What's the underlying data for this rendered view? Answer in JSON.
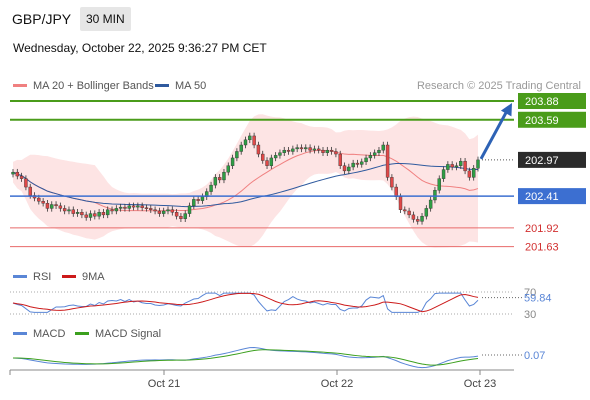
{
  "header": {
    "symbol": "GBP/JPY",
    "timeframe": "30 MIN",
    "datetime": "Wednesday, October 22, 2025 9:36:27 PM CET"
  },
  "colors": {
    "ma20": "#f08080",
    "ma50": "#2f5a9e",
    "bollinger_fill": "#fde4e4",
    "up_candle": "#2e9e44",
    "down_candle": "#e04848",
    "target_line": "#4a9c1a",
    "pivot_line": "#3c6fd1",
    "support_line": "#e86a6a",
    "arrow": "#2d62b5",
    "rsi": "#5a86d6",
    "rsi_ma": "#cc1a1a",
    "macd": "#5a86d6",
    "macd_signal": "#3ca01e",
    "current_price_bg": "#2b2b2b"
  },
  "chart_data": {
    "type": "candlestick",
    "legend": {
      "ma20_label": "MA 20 + Bollinger Bands",
      "ma50_label": "MA 50"
    },
    "watermark": "Research © 2025 Trading Central",
    "y_range": [
      201.5,
      204.05
    ],
    "x_ticks": [
      "Oct 21",
      "Oct 22",
      "Oct 23"
    ],
    "levels": [
      {
        "value": "203.88",
        "type": "target"
      },
      {
        "value": "203.59",
        "type": "target"
      },
      {
        "value": "202.97",
        "type": "current"
      },
      {
        "value": "202.41",
        "type": "pivot"
      },
      {
        "value": "201.92",
        "type": "support"
      },
      {
        "value": "201.63",
        "type": "support"
      }
    ],
    "candles_close": [
      202.78,
      202.72,
      202.68,
      202.55,
      202.42,
      202.38,
      202.33,
      202.3,
      202.22,
      202.28,
      202.26,
      202.22,
      202.18,
      202.2,
      202.14,
      202.16,
      202.12,
      202.08,
      202.14,
      202.1,
      202.16,
      202.12,
      202.2,
      202.18,
      202.22,
      202.24,
      202.22,
      202.26,
      202.24,
      202.26,
      202.23,
      202.22,
      202.2,
      202.18,
      202.14,
      202.18,
      202.2,
      202.16,
      202.1,
      202.06,
      202.14,
      202.26,
      202.36,
      202.34,
      202.4,
      202.48,
      202.58,
      202.7,
      202.66,
      202.78,
      202.88,
      203.0,
      203.1,
      203.2,
      203.28,
      203.34,
      203.2,
      203.06,
      202.96,
      202.88,
      203.0,
      203.04,
      203.08,
      203.12,
      203.1,
      203.14,
      203.16,
      203.14,
      203.16,
      203.12,
      203.14,
      203.12,
      203.08,
      203.12,
      203.1,
      203.06,
      202.88,
      202.8,
      202.86,
      202.92,
      202.9,
      202.94,
      203.0,
      203.04,
      203.08,
      203.12,
      203.2,
      202.7,
      202.55,
      202.4,
      202.2,
      202.18,
      202.12,
      202.05,
      202.02,
      202.1,
      202.22,
      202.35,
      202.5,
      202.68,
      202.82,
      202.9,
      202.86,
      202.88,
      202.95,
      202.8,
      202.7,
      202.84,
      202.97
    ],
    "rsi": {
      "label": "RSI",
      "ma_label": "9MA",
      "value": "59.84",
      "level_labels": [
        "70",
        "30"
      ]
    },
    "macd": {
      "label": "MACD",
      "signal_label": "MACD Signal",
      "value": "0.07"
    }
  }
}
